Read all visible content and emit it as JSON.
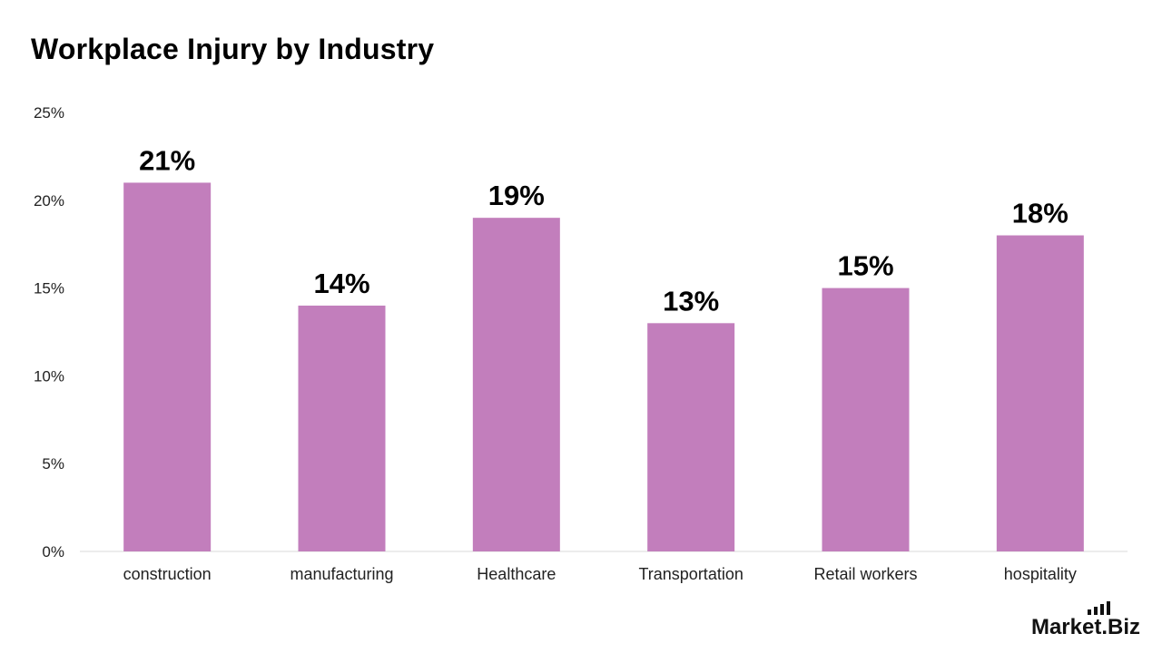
{
  "title": "Workplace Injury by Industry",
  "brand": {
    "name": "Market",
    "suffix": ".Biz"
  },
  "colors": {
    "bar": "#C27EBC",
    "axis": "#D9D9D9",
    "text": "#111111"
  },
  "chart_data": {
    "type": "bar",
    "title": "Workplace Injury by Industry",
    "categories": [
      "construction",
      "manufacturing",
      "Healthcare",
      "Transportation",
      "Retail workers",
      "hospitality"
    ],
    "values": [
      21,
      14,
      19,
      13,
      15,
      18
    ],
    "data_labels": [
      "21%",
      "14%",
      "19%",
      "13%",
      "15%",
      "18%"
    ],
    "ylim": [
      0,
      25
    ],
    "yticks": [
      0,
      5,
      10,
      15,
      20,
      25
    ],
    "ytick_labels": [
      "0%",
      "5%",
      "10%",
      "15%",
      "20%",
      "25%"
    ],
    "xlabel": "",
    "ylabel": "",
    "grid": false,
    "legend": "none"
  }
}
